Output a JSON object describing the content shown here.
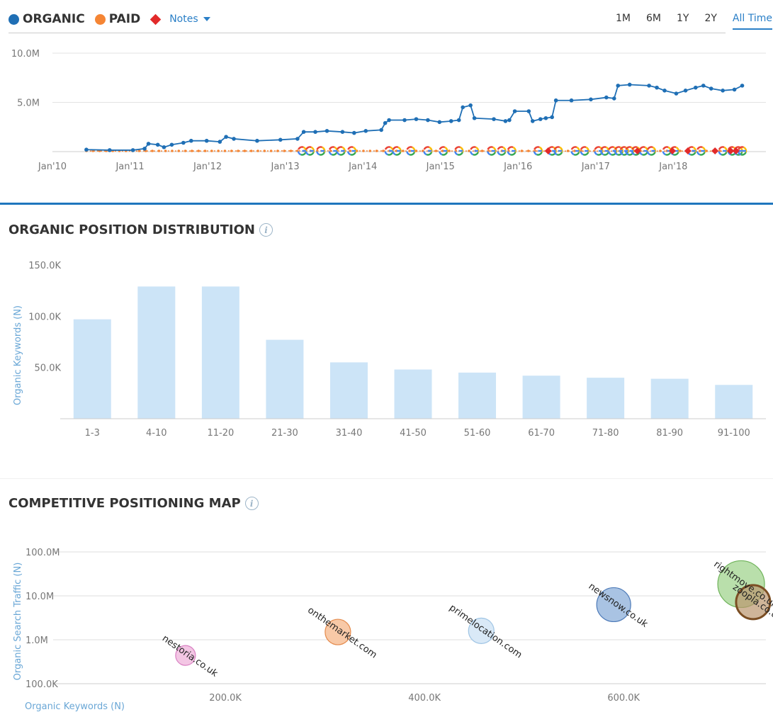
{
  "legend": {
    "organic_label": "ORGANIC",
    "paid_label": "PAID",
    "notes_label": "Notes",
    "organic_color": "#1f6fb5",
    "paid_color": "#f58534",
    "notes_color": "#e22a2a"
  },
  "time_ranges": [
    {
      "label": "1M",
      "active": false
    },
    {
      "label": "6M",
      "active": false
    },
    {
      "label": "1Y",
      "active": false
    },
    {
      "label": "2Y",
      "active": false
    },
    {
      "label": "All Time",
      "active": true
    }
  ],
  "sections": {
    "distribution_title": "ORGANIC POSITION DISTRIBUTION",
    "map_title": "COMPETITIVE POSITIONING MAP",
    "info_glyph": "i"
  },
  "chart_data": [
    {
      "type": "line",
      "y_ticks": [
        "10.0M",
        "5.0M"
      ],
      "y_tick_values": [
        10000000,
        5000000
      ],
      "x_ticks": [
        "Jan'10",
        "Jan'11",
        "Jan'12",
        "Jan'13",
        "Jan'14",
        "Jan'15",
        "Jan'16",
        "Jan'17",
        "Jan'18"
      ],
      "x_tick_values": [
        2010,
        2011,
        2012,
        2013,
        2014,
        2015,
        2016,
        2017,
        2018
      ],
      "ylim": [
        0,
        10000000
      ],
      "xlim": [
        2010,
        2018.7
      ],
      "grid": true,
      "series": [
        {
          "name": "ORGANIC",
          "color": "#1f6fb5",
          "points": [
            [
              2010.2,
              200000
            ],
            [
              2010.5,
              150000
            ],
            [
              2010.8,
              150000
            ],
            [
              2010.95,
              300000
            ],
            [
              2011.0,
              800000
            ],
            [
              2011.12,
              700000
            ],
            [
              2011.2,
              450000
            ],
            [
              2011.3,
              700000
            ],
            [
              2011.45,
              900000
            ],
            [
              2011.55,
              1100000
            ],
            [
              2011.75,
              1100000
            ],
            [
              2011.92,
              1000000
            ],
            [
              2012.0,
              1500000
            ],
            [
              2012.1,
              1300000
            ],
            [
              2012.4,
              1100000
            ],
            [
              2012.7,
              1200000
            ],
            [
              2012.92,
              1300000
            ],
            [
              2013.0,
              2000000
            ],
            [
              2013.15,
              2000000
            ],
            [
              2013.3,
              2100000
            ],
            [
              2013.5,
              2000000
            ],
            [
              2013.65,
              1900000
            ],
            [
              2013.8,
              2100000
            ],
            [
              2014.0,
              2200000
            ],
            [
              2014.05,
              2900000
            ],
            [
              2014.1,
              3200000
            ],
            [
              2014.3,
              3200000
            ],
            [
              2014.45,
              3300000
            ],
            [
              2014.6,
              3200000
            ],
            [
              2014.75,
              3000000
            ],
            [
              2014.9,
              3100000
            ],
            [
              2015.0,
              3200000
            ],
            [
              2015.05,
              4500000
            ],
            [
              2015.15,
              4700000
            ],
            [
              2015.2,
              3400000
            ],
            [
              2015.45,
              3300000
            ],
            [
              2015.6,
              3100000
            ],
            [
              2015.65,
              3200000
            ],
            [
              2015.72,
              4100000
            ],
            [
              2015.9,
              4100000
            ],
            [
              2015.95,
              3100000
            ],
            [
              2016.05,
              3300000
            ],
            [
              2016.12,
              3400000
            ],
            [
              2016.2,
              3500000
            ],
            [
              2016.25,
              5200000
            ],
            [
              2016.45,
              5200000
            ],
            [
              2016.7,
              5300000
            ],
            [
              2016.9,
              5500000
            ],
            [
              2017.0,
              5400000
            ],
            [
              2017.05,
              6700000
            ],
            [
              2017.2,
              6800000
            ],
            [
              2017.45,
              6700000
            ],
            [
              2017.55,
              6500000
            ],
            [
              2017.65,
              6200000
            ],
            [
              2017.8,
              5900000
            ],
            [
              2017.92,
              6200000
            ],
            [
              2018.05,
              6500000
            ],
            [
              2018.15,
              6700000
            ],
            [
              2018.25,
              6400000
            ],
            [
              2018.4,
              6200000
            ],
            [
              2018.55,
              6300000
            ],
            [
              2018.65,
              6700000
            ]
          ]
        },
        {
          "name": "PAID",
          "color": "#f58534",
          "points": [
            [
              2010.2,
              50000
            ],
            [
              2011.0,
              60000
            ],
            [
              2012.0,
              70000
            ],
            [
              2013.0,
              80000
            ],
            [
              2014.0,
              70000
            ],
            [
              2015.0,
              60000
            ],
            [
              2016.0,
              60000
            ],
            [
              2017.0,
              50000
            ],
            [
              2018.0,
              50000
            ],
            [
              2018.65,
              50000
            ]
          ]
        }
      ],
      "google_updates": [
        2012.98,
        2013.08,
        2013.22,
        2013.38,
        2013.48,
        2013.62,
        2014.1,
        2014.2,
        2014.38,
        2014.6,
        2014.8,
        2015.0,
        2015.2,
        2015.42,
        2015.55,
        2015.68,
        2016.02,
        2016.2,
        2016.28,
        2016.5,
        2016.62,
        2016.8,
        2016.88,
        2016.98,
        2017.06,
        2017.13,
        2017.2,
        2017.28,
        2017.38,
        2017.48,
        2017.68,
        2017.78,
        2018.0,
        2018.12,
        2018.4,
        2018.52,
        2018.6,
        2018.65
      ],
      "notes": [
        2016.15,
        2017.3,
        2017.75,
        2017.95,
        2018.3,
        2018.5,
        2018.57
      ]
    },
    {
      "type": "bar",
      "ylabel": "Organic Keywords (N)",
      "categories": [
        "1-3",
        "4-10",
        "11-20",
        "21-30",
        "31-40",
        "41-50",
        "51-60",
        "61-70",
        "71-80",
        "81-90",
        "91-100"
      ],
      "values": [
        97000,
        129000,
        129000,
        77000,
        55000,
        48000,
        45000,
        42000,
        40000,
        39000,
        33000
      ],
      "y_ticks": [
        "150.0K",
        "100.0K",
        "50.0K"
      ],
      "y_tick_values": [
        150000,
        100000,
        50000
      ],
      "ylim": [
        0,
        150000
      ],
      "grid": false,
      "bar_color": "#cce4f7"
    },
    {
      "type": "scatter",
      "xlabel": "Organic Keywords (N)",
      "ylabel": "Organic Search Traffic (N)",
      "y_scale": "log",
      "y_ticks": [
        "100.0M",
        "10.0M",
        "1.0M",
        "100.0K"
      ],
      "y_tick_values": [
        100000000,
        10000000,
        1000000,
        100000
      ],
      "x_ticks": [
        "200.0K",
        "400.0K",
        "600.0K"
      ],
      "x_tick_values": [
        200000,
        400000,
        600000
      ],
      "xlim": [
        0,
        740000
      ],
      "ylim": [
        100000,
        100000000
      ],
      "grid": true,
      "points": [
        {
          "label": "nestoria.co.uk",
          "x": 160000,
          "y": 440000,
          "r": 14,
          "fill": "#f3c6e4",
          "stroke": "#d97fc2"
        },
        {
          "label": "onthemarket.com",
          "x": 313000,
          "y": 1500000,
          "r": 18,
          "fill": "#f8c9a7",
          "stroke": "#e48a4c"
        },
        {
          "label": "primelocation.com",
          "x": 457000,
          "y": 1600000,
          "r": 18,
          "fill": "#d9e9f7",
          "stroke": "#9ec4e4"
        },
        {
          "label": "newsnow.co.uk",
          "x": 590000,
          "y": 6300000,
          "r": 24,
          "fill": "#a9c3e3",
          "stroke": "#4d7ab8"
        },
        {
          "label": "rightmove.co.uk",
          "x": 718000,
          "y": 18500000,
          "r": 33,
          "fill": "#b9dfab",
          "stroke": "#6fb35a"
        },
        {
          "label": "zoopla.co.uk",
          "x": 730000,
          "y": 7200000,
          "r": 24,
          "fill": "rgba(186,150,110,0.7)",
          "stroke": "#7b4e23"
        }
      ]
    }
  ]
}
